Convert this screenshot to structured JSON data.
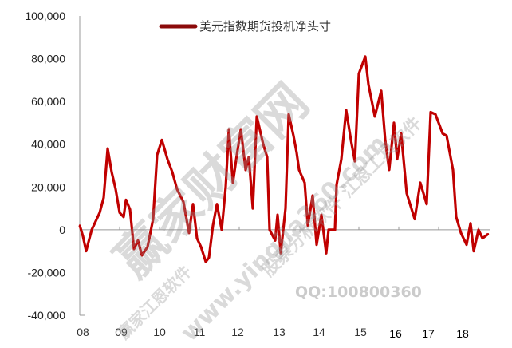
{
  "chart_data": {
    "type": "line",
    "title": "",
    "xlabel": "",
    "ylabel": "",
    "ylim": [
      -40000,
      100000
    ],
    "yticks": [
      "100,000",
      "80,000",
      "60,000",
      "40,000",
      "20,000",
      "0",
      "-20,000",
      "-40,000"
    ],
    "ytick_values": [
      100000,
      80000,
      60000,
      40000,
      20000,
      0,
      -20000,
      -40000
    ],
    "xlim": [
      2008,
      2018.3
    ],
    "xticks": [
      "08",
      "09",
      "10",
      "11",
      "12",
      "13",
      "14",
      "15",
      "16",
      "17",
      "18"
    ],
    "grid": false,
    "legend": "top-center",
    "series": [
      {
        "name": "美元指数期货投机净头寸",
        "color": "#c00000",
        "points": [
          [
            2008.0,
            2000
          ],
          [
            2008.08,
            -3000
          ],
          [
            2008.16,
            -10000
          ],
          [
            2008.3,
            0
          ],
          [
            2008.5,
            8000
          ],
          [
            2008.6,
            15000
          ],
          [
            2008.7,
            38000
          ],
          [
            2008.8,
            27000
          ],
          [
            2008.9,
            19000
          ],
          [
            2009.0,
            8000
          ],
          [
            2009.1,
            6000
          ],
          [
            2009.16,
            14000
          ],
          [
            2009.26,
            9500
          ],
          [
            2009.36,
            -9000
          ],
          [
            2009.46,
            -5000
          ],
          [
            2009.56,
            -12000
          ],
          [
            2009.7,
            -8000
          ],
          [
            2009.84,
            5000
          ],
          [
            2009.94,
            35000
          ],
          [
            2010.06,
            42000
          ],
          [
            2010.2,
            33000
          ],
          [
            2010.32,
            27000
          ],
          [
            2010.44,
            19000
          ],
          [
            2010.6,
            13000
          ],
          [
            2010.74,
            -1500
          ],
          [
            2010.84,
            12000
          ],
          [
            2010.94,
            -4000
          ],
          [
            2011.04,
            -8000
          ],
          [
            2011.16,
            -15000
          ],
          [
            2011.24,
            -13000
          ],
          [
            2011.34,
            2000
          ],
          [
            2011.44,
            12000
          ],
          [
            2011.56,
            0
          ],
          [
            2011.66,
            20000
          ],
          [
            2011.74,
            47000
          ],
          [
            2011.84,
            22000
          ],
          [
            2011.94,
            35000
          ],
          [
            2012.04,
            47000
          ],
          [
            2012.16,
            28000
          ],
          [
            2012.24,
            34000
          ],
          [
            2012.34,
            10000
          ],
          [
            2012.44,
            53000
          ],
          [
            2012.6,
            40000
          ],
          [
            2012.7,
            34000
          ],
          [
            2012.76,
            0
          ],
          [
            2012.9,
            -5000
          ],
          [
            2012.96,
            7000
          ],
          [
            2013.04,
            -11000
          ],
          [
            2013.16,
            10000
          ],
          [
            2013.24,
            54000
          ],
          [
            2013.36,
            44000
          ],
          [
            2013.44,
            36000
          ],
          [
            2013.5,
            28000
          ],
          [
            2013.64,
            22000
          ],
          [
            2013.72,
            2000
          ],
          [
            2013.84,
            16000
          ],
          [
            2013.94,
            -7000
          ],
          [
            2014.06,
            7000
          ],
          [
            2014.18,
            -11000
          ],
          [
            2014.24,
            0
          ],
          [
            2014.4,
            0
          ],
          [
            2014.44,
            21000
          ],
          [
            2014.56,
            33000
          ],
          [
            2014.68,
            56000
          ],
          [
            2014.8,
            42000
          ],
          [
            2014.9,
            32000
          ],
          [
            2015.0,
            73000
          ],
          [
            2015.16,
            81000
          ],
          [
            2015.24,
            68000
          ],
          [
            2015.4,
            53000
          ],
          [
            2015.56,
            65000
          ],
          [
            2015.66,
            42000
          ],
          [
            2015.76,
            28000
          ],
          [
            2015.88,
            50000
          ],
          [
            2015.96,
            33000
          ],
          [
            2016.06,
            45000
          ],
          [
            2016.2,
            17000
          ],
          [
            2016.4,
            5000
          ],
          [
            2016.54,
            22000
          ],
          [
            2016.7,
            12000
          ],
          [
            2016.8,
            55000
          ],
          [
            2016.92,
            54000
          ],
          [
            2017.1,
            45000
          ],
          [
            2017.2,
            44000
          ],
          [
            2017.36,
            28000
          ],
          [
            2017.44,
            6000
          ],
          [
            2017.56,
            -1500
          ],
          [
            2017.7,
            -7000
          ],
          [
            2017.8,
            3000
          ],
          [
            2017.88,
            -10000
          ],
          [
            2018.0,
            0
          ],
          [
            2018.1,
            -4000
          ],
          [
            2018.24,
            -2000
          ]
        ]
      }
    ]
  },
  "watermark": {
    "main": "赢家财富网",
    "software": "赢家江恩软件",
    "url": "www.yingjia360.com",
    "tools": "股票分析软件 江恩工具软件",
    "qq": "QQ:100800360"
  }
}
